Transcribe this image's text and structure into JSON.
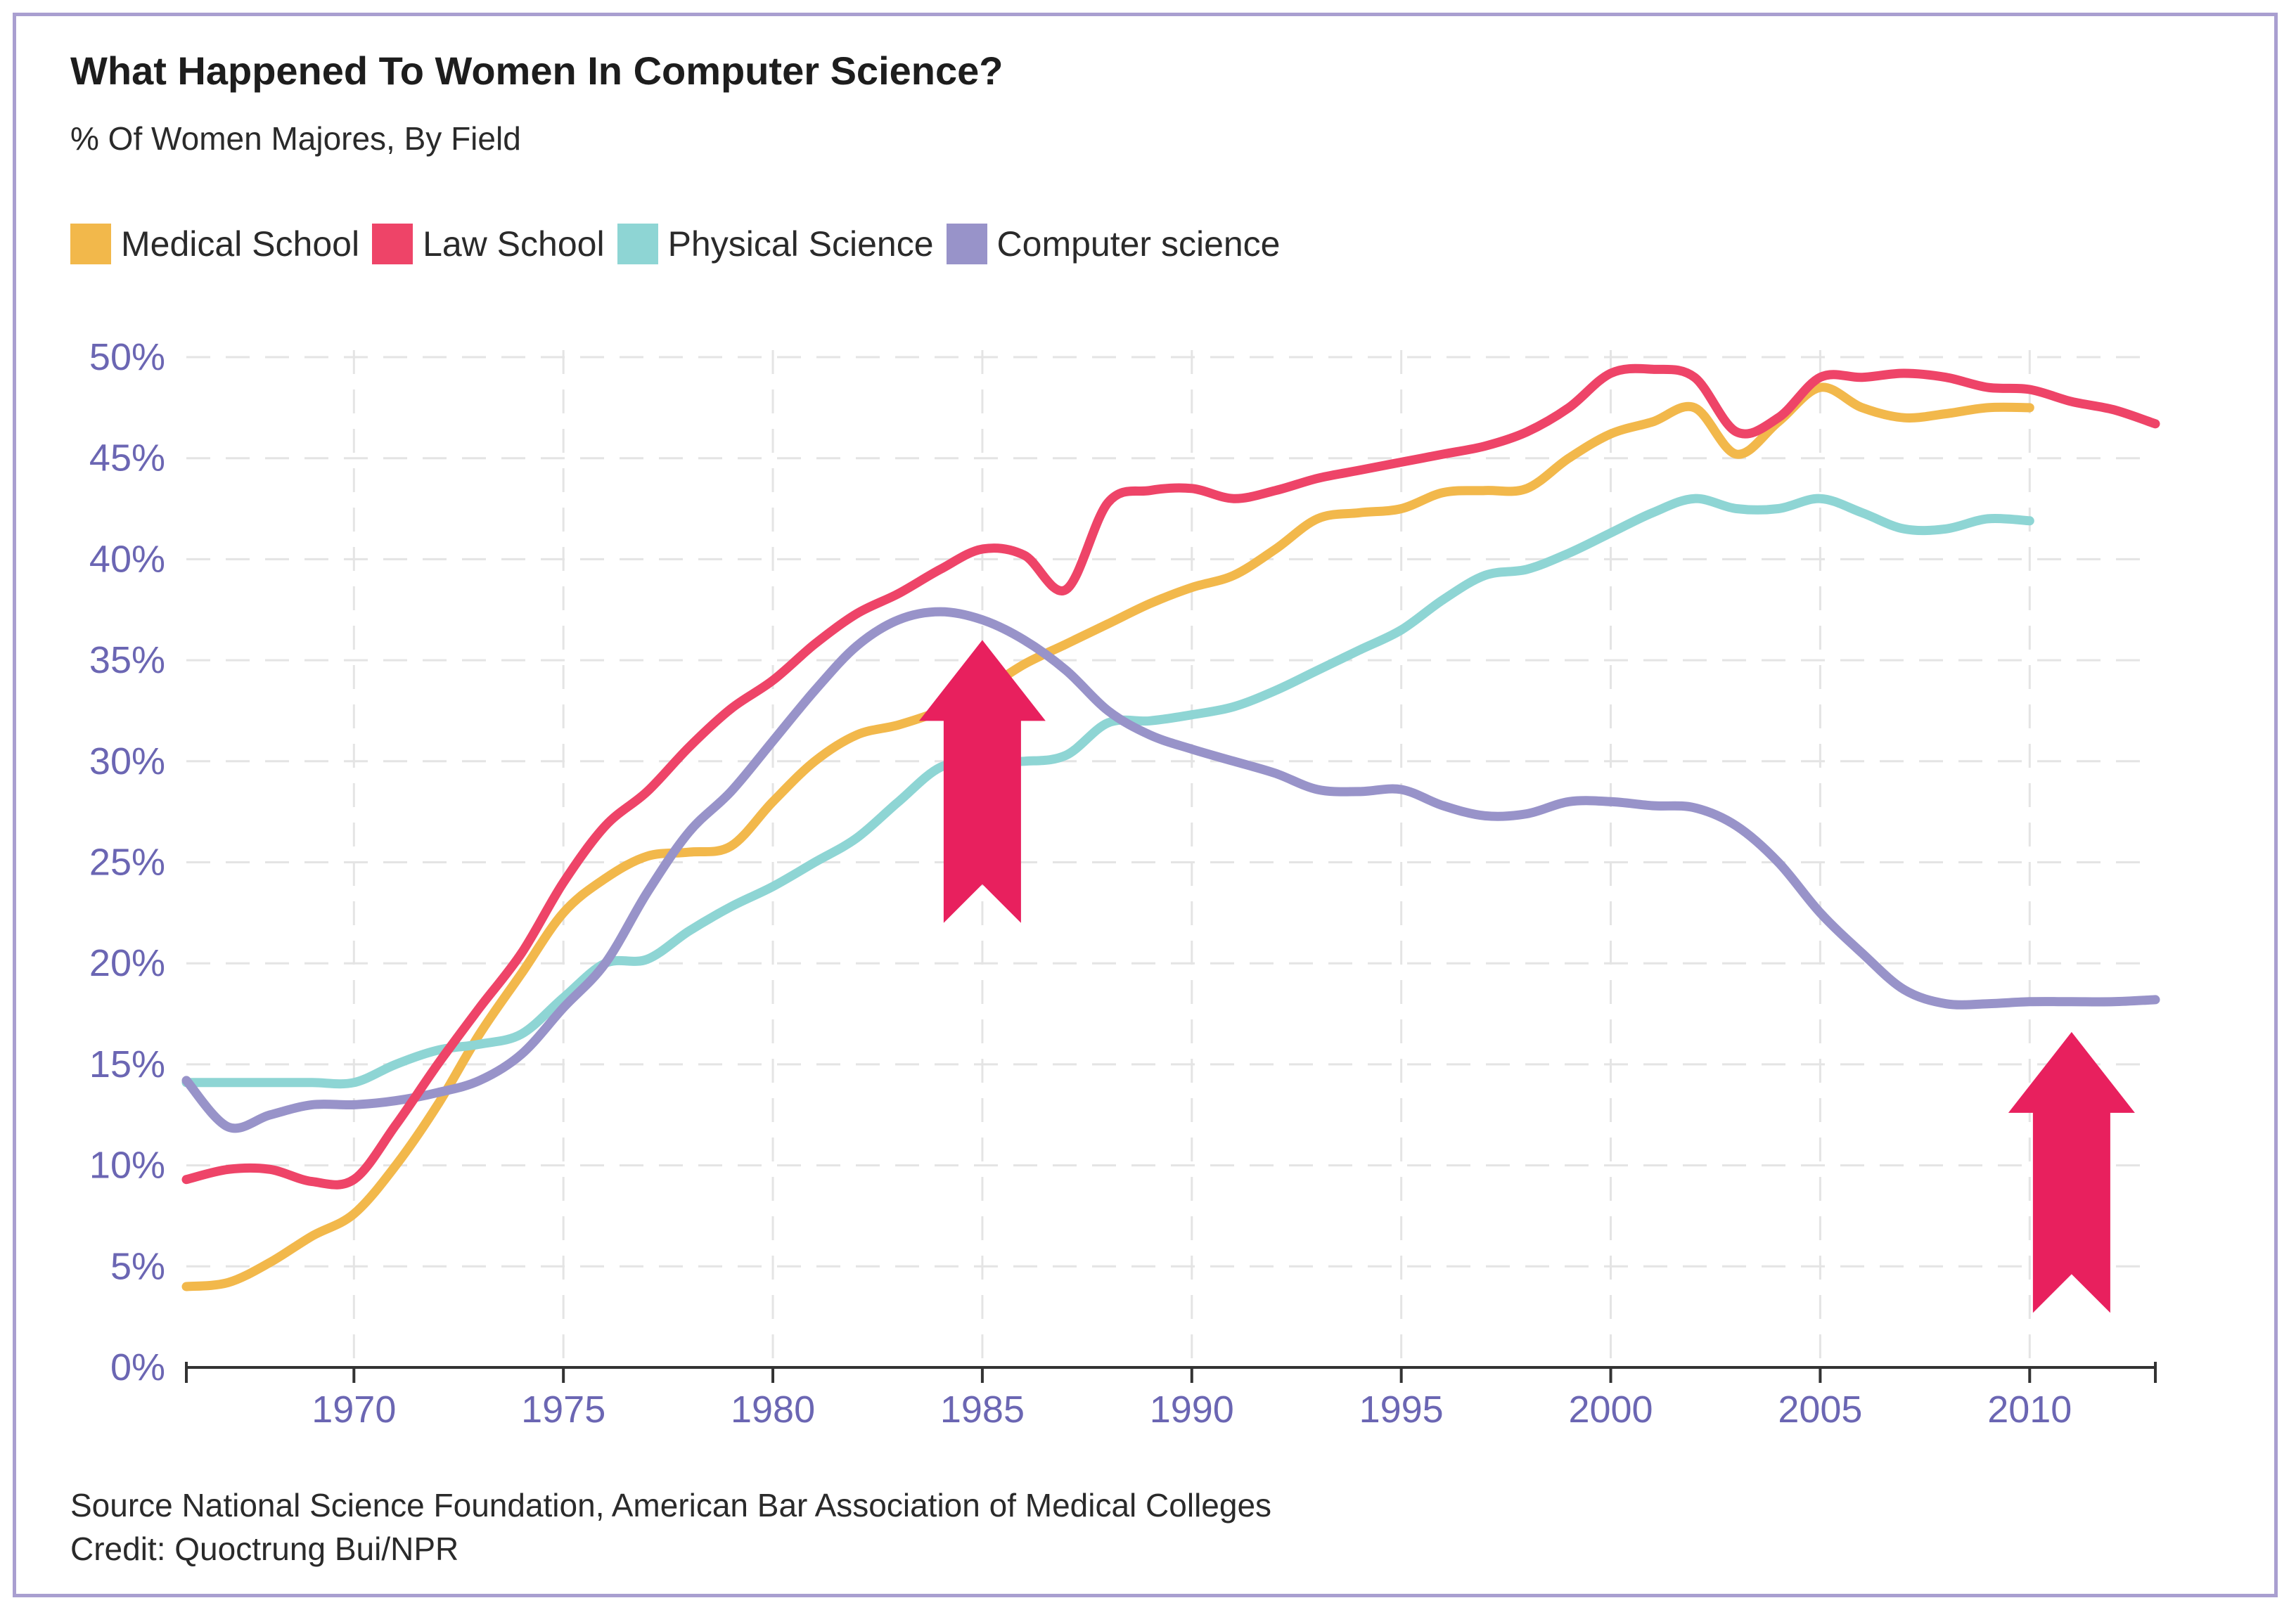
{
  "title": "What Happened To Women In Computer Science?",
  "subtitle": "% Of Women Majores, By Field",
  "footer": {
    "source": "Source National Science Foundation, American Bar Association of Medical Colleges",
    "credit": "Credit: Quoctrung Bui/NPR"
  },
  "colors": {
    "medical": "#f2b84b",
    "law": "#ee4468",
    "physical": "#8ed5d4",
    "computer": "#9893c9",
    "arrow": "#e8205e",
    "axis_text": "#6b66b3",
    "grid": "#e4e4e4",
    "frame": "#a99fd0"
  },
  "chart_data": {
    "type": "line",
    "title": "What Happened To Women In Computer Science?",
    "subtitle": "% Of Women Majores, By Field",
    "xlim": [
      1966,
      2013
    ],
    "ylim": [
      0,
      50
    ],
    "x_ticks": [
      1970,
      1975,
      1980,
      1985,
      1990,
      1995,
      2000,
      2005,
      2010
    ],
    "x_tick_labels": [
      "1970",
      "1975",
      "1980",
      "1985",
      "1990",
      "1995",
      "2000",
      "2005",
      "2010"
    ],
    "y_ticks": [
      0,
      5,
      10,
      15,
      20,
      25,
      30,
      35,
      40,
      45,
      50
    ],
    "y_tick_labels": [
      "0%",
      "5%",
      "10%",
      "15%",
      "20%",
      "25%",
      "30%",
      "35%",
      "40%",
      "45%",
      "50%"
    ],
    "grid": true,
    "legend_position": "top-left",
    "series": [
      {
        "name": "Medical School",
        "color": "#f2b84b",
        "points": [
          [
            1966,
            4.0
          ],
          [
            1967,
            4.2
          ],
          [
            1968,
            5.2
          ],
          [
            1969,
            6.5
          ],
          [
            1970,
            7.6
          ],
          [
            1971,
            10.0
          ],
          [
            1972,
            13.0
          ],
          [
            1973,
            16.5
          ],
          [
            1974,
            19.5
          ],
          [
            1975,
            22.5
          ],
          [
            1976,
            24.2
          ],
          [
            1977,
            25.3
          ],
          [
            1978,
            25.5
          ],
          [
            1979,
            25.8
          ],
          [
            1980,
            28.0
          ],
          [
            1981,
            30.0
          ],
          [
            1982,
            31.3
          ],
          [
            1983,
            31.8
          ],
          [
            1984,
            32.5
          ],
          [
            1985,
            33.5
          ],
          [
            1986,
            34.8
          ],
          [
            1987,
            35.8
          ],
          [
            1988,
            36.8
          ],
          [
            1989,
            37.8
          ],
          [
            1990,
            38.6
          ],
          [
            1991,
            39.2
          ],
          [
            1992,
            40.5
          ],
          [
            1993,
            42.0
          ],
          [
            1994,
            42.3
          ],
          [
            1995,
            42.5
          ],
          [
            1996,
            43.3
          ],
          [
            1997,
            43.4
          ],
          [
            1998,
            43.5
          ],
          [
            1999,
            45.0
          ],
          [
            2000,
            46.2
          ],
          [
            2001,
            46.8
          ],
          [
            2002,
            47.5
          ],
          [
            2003,
            45.2
          ],
          [
            2004,
            46.8
          ],
          [
            2005,
            48.5
          ],
          [
            2006,
            47.5
          ],
          [
            2007,
            47.0
          ],
          [
            2008,
            47.2
          ],
          [
            2009,
            47.5
          ],
          [
            2010,
            47.5
          ]
        ]
      },
      {
        "name": "Law School",
        "color": "#ee4468",
        "points": [
          [
            1966,
            9.3
          ],
          [
            1967,
            9.8
          ],
          [
            1968,
            9.8
          ],
          [
            1969,
            9.2
          ],
          [
            1970,
            9.3
          ],
          [
            1971,
            12.0
          ],
          [
            1972,
            15.0
          ],
          [
            1973,
            17.8
          ],
          [
            1974,
            20.5
          ],
          [
            1975,
            24.0
          ],
          [
            1976,
            26.8
          ],
          [
            1977,
            28.5
          ],
          [
            1978,
            30.7
          ],
          [
            1979,
            32.6
          ],
          [
            1980,
            34.0
          ],
          [
            1981,
            35.8
          ],
          [
            1982,
            37.3
          ],
          [
            1983,
            38.3
          ],
          [
            1984,
            39.5
          ],
          [
            1985,
            40.5
          ],
          [
            1986,
            40.2
          ],
          [
            1987,
            38.5
          ],
          [
            1988,
            42.8
          ],
          [
            1989,
            43.4
          ],
          [
            1990,
            43.5
          ],
          [
            1991,
            43.0
          ],
          [
            1992,
            43.4
          ],
          [
            1993,
            44.0
          ],
          [
            1994,
            44.4
          ],
          [
            1995,
            44.8
          ],
          [
            1996,
            45.2
          ],
          [
            1997,
            45.6
          ],
          [
            1998,
            46.3
          ],
          [
            1999,
            47.5
          ],
          [
            2000,
            49.2
          ],
          [
            2001,
            49.4
          ],
          [
            2002,
            49.0
          ],
          [
            2003,
            46.3
          ],
          [
            2004,
            47.0
          ],
          [
            2005,
            49.0
          ],
          [
            2006,
            49.0
          ],
          [
            2007,
            49.2
          ],
          [
            2008,
            49.0
          ],
          [
            2009,
            48.5
          ],
          [
            2010,
            48.4
          ],
          [
            2011,
            47.8
          ],
          [
            2012,
            47.4
          ],
          [
            2013,
            46.7
          ]
        ]
      },
      {
        "name": "Physical Science",
        "color": "#8ed5d4",
        "points": [
          [
            1966,
            14.1
          ],
          [
            1967,
            14.1
          ],
          [
            1968,
            14.1
          ],
          [
            1969,
            14.1
          ],
          [
            1970,
            14.1
          ],
          [
            1971,
            15.0
          ],
          [
            1972,
            15.7
          ],
          [
            1973,
            16.0
          ],
          [
            1974,
            16.5
          ],
          [
            1975,
            18.3
          ],
          [
            1976,
            20.0
          ],
          [
            1977,
            20.2
          ],
          [
            1978,
            21.6
          ],
          [
            1979,
            22.8
          ],
          [
            1980,
            23.8
          ],
          [
            1981,
            25.0
          ],
          [
            1982,
            26.2
          ],
          [
            1983,
            28.0
          ],
          [
            1984,
            29.7
          ],
          [
            1985,
            30.0
          ],
          [
            1986,
            30.0
          ],
          [
            1987,
            30.3
          ],
          [
            1988,
            31.9
          ],
          [
            1989,
            32.0
          ],
          [
            1990,
            32.3
          ],
          [
            1991,
            32.7
          ],
          [
            1992,
            33.5
          ],
          [
            1993,
            34.5
          ],
          [
            1994,
            35.5
          ],
          [
            1995,
            36.5
          ],
          [
            1996,
            38.0
          ],
          [
            1997,
            39.2
          ],
          [
            1998,
            39.5
          ],
          [
            1999,
            40.3
          ],
          [
            2000,
            41.3
          ],
          [
            2001,
            42.3
          ],
          [
            2002,
            43.0
          ],
          [
            2003,
            42.5
          ],
          [
            2004,
            42.5
          ],
          [
            2005,
            43.0
          ],
          [
            2006,
            42.3
          ],
          [
            2007,
            41.5
          ],
          [
            2008,
            41.5
          ],
          [
            2009,
            42.0
          ],
          [
            2010,
            41.9
          ]
        ]
      },
      {
        "name": "Computer science",
        "color": "#9893c9",
        "points": [
          [
            1966,
            14.2
          ],
          [
            1967,
            11.9
          ],
          [
            1968,
            12.5
          ],
          [
            1969,
            13.0
          ],
          [
            1970,
            13.0
          ],
          [
            1971,
            13.2
          ],
          [
            1972,
            13.6
          ],
          [
            1973,
            14.2
          ],
          [
            1974,
            15.5
          ],
          [
            1975,
            17.8
          ],
          [
            1976,
            20.0
          ],
          [
            1977,
            23.5
          ],
          [
            1978,
            26.5
          ],
          [
            1979,
            28.5
          ],
          [
            1980,
            31.0
          ],
          [
            1981,
            33.5
          ],
          [
            1982,
            35.7
          ],
          [
            1983,
            37.0
          ],
          [
            1984,
            37.4
          ],
          [
            1985,
            37.0
          ],
          [
            1986,
            36.0
          ],
          [
            1987,
            34.5
          ],
          [
            1988,
            32.5
          ],
          [
            1989,
            31.3
          ],
          [
            1990,
            30.6
          ],
          [
            1991,
            30.0
          ],
          [
            1992,
            29.4
          ],
          [
            1993,
            28.6
          ],
          [
            1994,
            28.5
          ],
          [
            1995,
            28.6
          ],
          [
            1996,
            27.8
          ],
          [
            1997,
            27.3
          ],
          [
            1998,
            27.4
          ],
          [
            1999,
            28.0
          ],
          [
            2000,
            28.0
          ],
          [
            2001,
            27.8
          ],
          [
            2002,
            27.7
          ],
          [
            2003,
            26.8
          ],
          [
            2004,
            25.0
          ],
          [
            2005,
            22.5
          ],
          [
            2006,
            20.5
          ],
          [
            2007,
            18.7
          ],
          [
            2008,
            18.0
          ],
          [
            2009,
            18.0
          ],
          [
            2010,
            18.1
          ],
          [
            2011,
            18.1
          ],
          [
            2012,
            18.1
          ],
          [
            2013,
            18.2
          ]
        ]
      }
    ],
    "annotations": [
      {
        "type": "arrow",
        "x": 1985,
        "y_from": 22,
        "y_to": 36
      },
      {
        "type": "arrow",
        "x": 2011,
        "y_from": 2.7,
        "y_to": 16.6
      }
    ]
  }
}
